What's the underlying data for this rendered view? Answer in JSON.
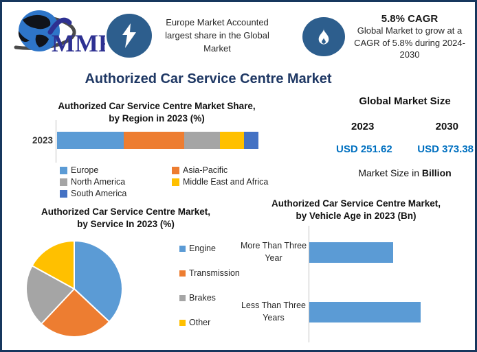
{
  "header": {
    "logo_text": "MMR",
    "left_callout": {
      "icon": "lightning-icon",
      "text": "Europe Market Accounted largest share in the Global Market"
    },
    "right_callout": {
      "icon": "flame-icon",
      "title": "5.8% CAGR",
      "text": "Global Market to grow at a CAGR of 5.8% during 2024-2030"
    }
  },
  "page_title": "Authorized Car Service Centre Market",
  "market_size": {
    "title": "Global Market Size",
    "year_start": "2023",
    "year_end": "2030",
    "value_start": "USD 251.62",
    "value_end": "USD 373.38",
    "unit_prefix": "Market Size in",
    "unit_bold": "Billion"
  },
  "colors": {
    "border_navy": "#17375E",
    "title_navy": "#1F3864",
    "usd_blue": "#0070C0",
    "icon_circle_blue": "#2D5E8D",
    "series_blue": "#5B9BD5",
    "series_orange": "#ED7D31",
    "series_gray": "#A5A5A5",
    "series_yellow": "#FFC000",
    "series_dark_blue": "#4472C4"
  },
  "chart_data": [
    {
      "type": "bar",
      "variant": "stacked-horizontal",
      "title": "Authorized Car Service Centre Market Share,\nby Region in 2023 (%)",
      "categories": [
        "2023"
      ],
      "series": [
        {
          "name": "Europe",
          "values": [
            33
          ],
          "color": "#5B9BD5"
        },
        {
          "name": "Asia-Pacific",
          "values": [
            30
          ],
          "color": "#ED7D31"
        },
        {
          "name": "North America",
          "values": [
            18
          ],
          "color": "#A5A5A5"
        },
        {
          "name": "Middle East and Africa",
          "values": [
            12
          ],
          "color": "#FFC000"
        },
        {
          "name": "South America",
          "values": [
            7
          ],
          "color": "#4472C4"
        }
      ],
      "xlim": [
        0,
        100
      ],
      "grid": false,
      "legend_position": "bottom"
    },
    {
      "type": "pie",
      "title": "Authorized Car Service Centre Market,\nby Service In 2023 (%)",
      "categories": [
        "Engine",
        "Transmission",
        "Brakes",
        "Other"
      ],
      "values": [
        37,
        25,
        21,
        17
      ],
      "colors": [
        "#5B9BD5",
        "#ED7D31",
        "#A5A5A5",
        "#FFC000"
      ],
      "start_angle": "top-clockwise",
      "legend_position": "right"
    },
    {
      "type": "bar",
      "variant": "horizontal",
      "title": "Authorized Car Service Centre Market,\nby  Vehicle Age in 2023 (Bn)",
      "categories": [
        "More Than Three Year",
        "Less Than Three Years"
      ],
      "values": [
        75,
        100
      ],
      "color": "#5B9BD5",
      "grid": false,
      "value_axis_hidden": true
    }
  ]
}
